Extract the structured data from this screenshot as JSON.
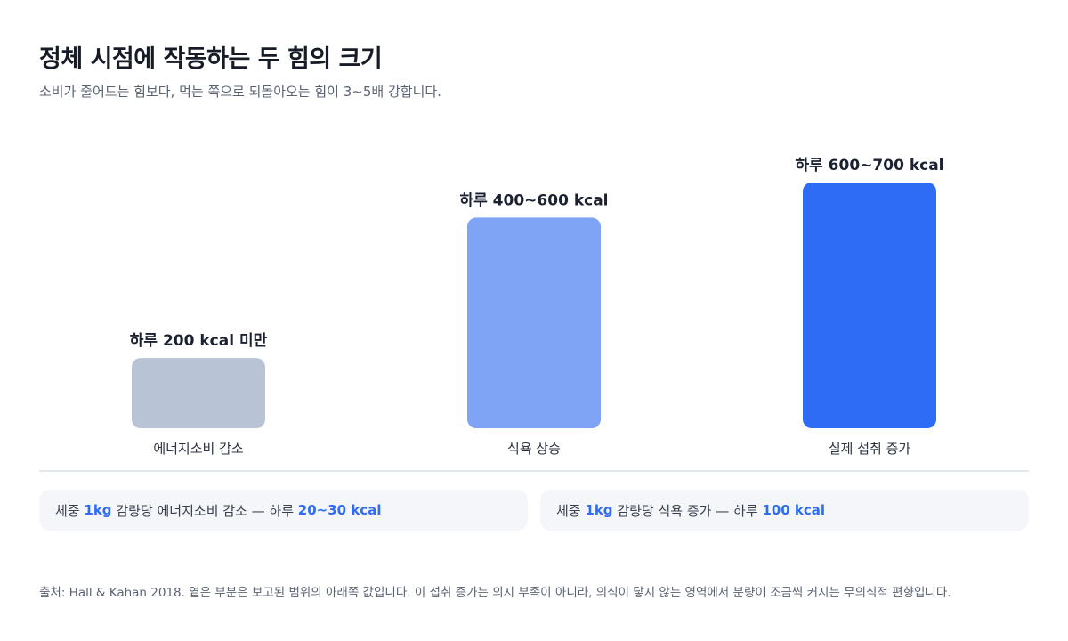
{
  "header": {
    "title": "정체 시점에 작동하는 두 힘의 크기",
    "subtitle": "소비가 줄어드는 힘보다, 먹는 쪽으로 되돌아오는 힘이 3~5배 강합니다."
  },
  "chart_data": {
    "type": "bar",
    "title": "",
    "xlabel": "",
    "ylabel": "",
    "ylim": [
      0,
      700
    ],
    "grid": false,
    "categories": [
      "에너지소비 감소",
      "식욕 상승",
      "실제 섭취 증가"
    ],
    "values": [
      200,
      600,
      700
    ],
    "range_low": [
      null,
      400,
      600
    ],
    "data_labels": [
      "하루 200 kcal 미만",
      "하루 400~600 kcal",
      "하루 600~700 kcal"
    ],
    "colors": [
      "#b8c3d6",
      "#7fa4f6",
      "#2f6cf5"
    ]
  },
  "notes": {
    "left": {
      "prefix": "체중",
      "unit": "1kg",
      "middle": "감량당 에너지소비 감소 — 하루",
      "value": "20~30 kcal"
    },
    "right": {
      "prefix": "체중",
      "unit": "1kg",
      "middle": "감량당 식욕 증가 — 하루",
      "value": "100 kcal"
    }
  },
  "footer": {
    "source": "출처: Hall & Kahan 2018. 옅은 부분은 보고된 범위의 아래쪽 값입니다. 이 섭취 증가는 의지 부족이 아니라, 의식이 닿지 않는 영역에서 분량이 조금씩 커지는 무의식적 편향입니다."
  }
}
